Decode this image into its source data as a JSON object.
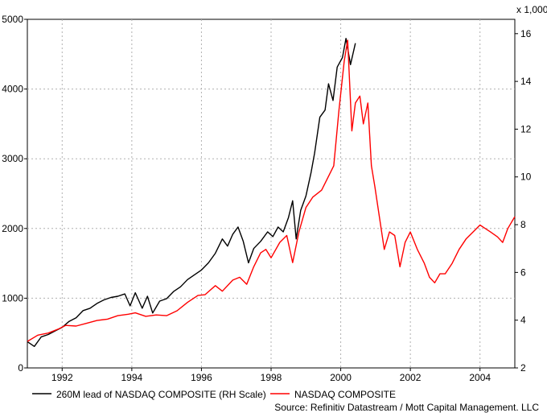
{
  "chart_data": {
    "type": "line",
    "x_ticks": [
      "1992",
      "1994",
      "1996",
      "1998",
      "2000",
      "2002",
      "2004"
    ],
    "x_range": [
      1991.0,
      2005.0
    ],
    "left_axis": {
      "ticks": [
        0,
        1000,
        2000,
        3000,
        4000,
        5000
      ],
      "ylim": [
        0,
        5000
      ]
    },
    "right_axis": {
      "ticks": [
        2,
        4,
        6,
        8,
        10,
        12,
        14,
        16
      ],
      "ylim": [
        2,
        16.6
      ],
      "multiplier_label": "x 1,000"
    },
    "grid": true,
    "legend_position": "bottom-left",
    "source": "Source: Refinitiv Datastream / Mott Capital Management. LLC",
    "series": [
      {
        "name": "260M lead of NASDAQ COMPOSITE (RH Scale)",
        "color": "#000000",
        "axis": "right",
        "points": [
          [
            1991.0,
            3.1
          ],
          [
            1991.2,
            2.9
          ],
          [
            1991.4,
            3.3
          ],
          [
            1991.6,
            3.4
          ],
          [
            1991.8,
            3.55
          ],
          [
            1992.0,
            3.7
          ],
          [
            1992.2,
            3.95
          ],
          [
            1992.4,
            4.1
          ],
          [
            1992.6,
            4.4
          ],
          [
            1992.8,
            4.5
          ],
          [
            1993.0,
            4.7
          ],
          [
            1993.2,
            4.85
          ],
          [
            1993.4,
            4.95
          ],
          [
            1993.6,
            5.0
          ],
          [
            1993.8,
            5.1
          ],
          [
            1993.95,
            4.6
          ],
          [
            1994.1,
            5.15
          ],
          [
            1994.3,
            4.5
          ],
          [
            1994.45,
            5.0
          ],
          [
            1994.6,
            4.3
          ],
          [
            1994.8,
            4.8
          ],
          [
            1995.0,
            4.9
          ],
          [
            1995.2,
            5.2
          ],
          [
            1995.4,
            5.4
          ],
          [
            1995.6,
            5.7
          ],
          [
            1995.8,
            5.9
          ],
          [
            1996.0,
            6.1
          ],
          [
            1996.2,
            6.4
          ],
          [
            1996.4,
            6.8
          ],
          [
            1996.6,
            7.4
          ],
          [
            1996.75,
            7.1
          ],
          [
            1996.9,
            7.6
          ],
          [
            1997.05,
            7.9
          ],
          [
            1997.2,
            7.3
          ],
          [
            1997.35,
            6.4
          ],
          [
            1997.5,
            7.0
          ],
          [
            1997.7,
            7.3
          ],
          [
            1997.9,
            7.7
          ],
          [
            1998.05,
            7.5
          ],
          [
            1998.2,
            7.9
          ],
          [
            1998.35,
            7.7
          ],
          [
            1998.5,
            8.3
          ],
          [
            1998.62,
            9.0
          ],
          [
            1998.72,
            7.4
          ],
          [
            1998.85,
            8.6
          ],
          [
            1999.0,
            9.2
          ],
          [
            1999.15,
            10.2
          ],
          [
            1999.25,
            11.0
          ],
          [
            1999.4,
            12.5
          ],
          [
            1999.55,
            12.8
          ],
          [
            1999.65,
            13.9
          ],
          [
            1999.78,
            13.2
          ],
          [
            1999.9,
            14.6
          ],
          [
            2000.05,
            15.0
          ],
          [
            2000.15,
            15.8
          ],
          [
            2000.28,
            14.7
          ],
          [
            2000.42,
            15.6
          ]
        ]
      },
      {
        "name": "NASDAQ COMPOSITE",
        "color": "#ff0000",
        "axis": "left",
        "points": [
          [
            1991.0,
            380
          ],
          [
            1991.3,
            470
          ],
          [
            1991.6,
            500
          ],
          [
            1991.9,
            560
          ],
          [
            1992.1,
            610
          ],
          [
            1992.4,
            600
          ],
          [
            1992.7,
            640
          ],
          [
            1993.0,
            680
          ],
          [
            1993.3,
            700
          ],
          [
            1993.6,
            750
          ],
          [
            1993.9,
            770
          ],
          [
            1994.1,
            790
          ],
          [
            1994.4,
            740
          ],
          [
            1994.7,
            760
          ],
          [
            1995.0,
            750
          ],
          [
            1995.3,
            820
          ],
          [
            1995.6,
            940
          ],
          [
            1995.9,
            1040
          ],
          [
            1996.1,
            1050
          ],
          [
            1996.4,
            1180
          ],
          [
            1996.6,
            1100
          ],
          [
            1996.9,
            1260
          ],
          [
            1997.1,
            1300
          ],
          [
            1997.3,
            1200
          ],
          [
            1997.5,
            1450
          ],
          [
            1997.7,
            1650
          ],
          [
            1997.85,
            1700
          ],
          [
            1998.0,
            1580
          ],
          [
            1998.25,
            1800
          ],
          [
            1998.45,
            1900
          ],
          [
            1998.62,
            1510
          ],
          [
            1998.8,
            1950
          ],
          [
            1999.0,
            2300
          ],
          [
            1999.2,
            2450
          ],
          [
            1999.45,
            2550
          ],
          [
            1999.6,
            2700
          ],
          [
            1999.8,
            2900
          ],
          [
            1999.95,
            3700
          ],
          [
            2000.1,
            4400
          ],
          [
            2000.2,
            4700
          ],
          [
            2000.32,
            3400
          ],
          [
            2000.42,
            3800
          ],
          [
            2000.55,
            3900
          ],
          [
            2000.65,
            3500
          ],
          [
            2000.78,
            3800
          ],
          [
            2000.88,
            2900
          ],
          [
            2000.98,
            2600
          ],
          [
            2001.1,
            2200
          ],
          [
            2001.25,
            1700
          ],
          [
            2001.4,
            1950
          ],
          [
            2001.55,
            1900
          ],
          [
            2001.7,
            1450
          ],
          [
            2001.85,
            1800
          ],
          [
            2002.0,
            1950
          ],
          [
            2002.2,
            1700
          ],
          [
            2002.4,
            1500
          ],
          [
            2002.55,
            1300
          ],
          [
            2002.7,
            1220
          ],
          [
            2002.85,
            1350
          ],
          [
            2003.0,
            1350
          ],
          [
            2003.2,
            1500
          ],
          [
            2003.4,
            1700
          ],
          [
            2003.6,
            1850
          ],
          [
            2003.8,
            1950
          ],
          [
            2004.0,
            2050
          ],
          [
            2004.15,
            2000
          ],
          [
            2004.3,
            1950
          ],
          [
            2004.5,
            1880
          ],
          [
            2004.65,
            1800
          ],
          [
            2004.8,
            2000
          ],
          [
            2005.0,
            2170
          ]
        ]
      }
    ]
  }
}
